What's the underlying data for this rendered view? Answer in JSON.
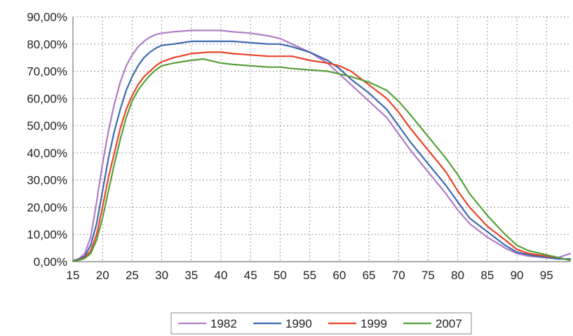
{
  "chart_data": {
    "type": "line",
    "title": "",
    "xlabel": "",
    "ylabel": "",
    "xlim": [
      15,
      99
    ],
    "ylim": [
      0,
      90
    ],
    "y_ticks": [
      "0,00%",
      "10,00%",
      "20,00%",
      "30,00%",
      "40,00%",
      "50,00%",
      "60,00%",
      "70,00%",
      "80,00%",
      "90,00%"
    ],
    "x_ticks": [
      "15",
      "20",
      "25",
      "30",
      "35",
      "40",
      "45",
      "50",
      "55",
      "60",
      "65",
      "70",
      "75",
      "80",
      "85",
      "90",
      "95"
    ],
    "grid": "dotted",
    "legend_position": "bottom",
    "series": [
      {
        "name": "1982",
        "color": "#b07cc6",
        "points": [
          [
            15,
            0.3
          ],
          [
            16,
            1
          ],
          [
            17,
            3
          ],
          [
            18,
            9
          ],
          [
            19,
            22
          ],
          [
            20,
            36
          ],
          [
            21,
            48
          ],
          [
            22,
            58
          ],
          [
            23,
            66
          ],
          [
            24,
            72
          ],
          [
            25,
            76
          ],
          [
            26,
            79
          ],
          [
            27,
            81
          ],
          [
            28,
            82.5
          ],
          [
            29,
            83.5
          ],
          [
            30,
            84
          ],
          [
            32,
            84.5
          ],
          [
            35,
            85
          ],
          [
            38,
            85
          ],
          [
            40,
            85
          ],
          [
            42,
            84.5
          ],
          [
            45,
            84
          ],
          [
            48,
            83
          ],
          [
            50,
            82
          ],
          [
            52,
            80
          ],
          [
            55,
            77
          ],
          [
            58,
            73
          ],
          [
            60,
            69
          ],
          [
            62,
            65
          ],
          [
            65,
            59
          ],
          [
            68,
            53
          ],
          [
            70,
            47
          ],
          [
            72,
            41
          ],
          [
            75,
            33
          ],
          [
            78,
            25
          ],
          [
            80,
            19
          ],
          [
            82,
            14
          ],
          [
            85,
            9
          ],
          [
            88,
            5
          ],
          [
            90,
            3
          ],
          [
            92,
            2
          ],
          [
            95,
            1.5
          ],
          [
            97,
            1.5
          ],
          [
            99,
            3
          ]
        ]
      },
      {
        "name": "1990",
        "color": "#3d6bb0",
        "points": [
          [
            15,
            0.3
          ],
          [
            16,
            1
          ],
          [
            17,
            2
          ],
          [
            18,
            6
          ],
          [
            19,
            14
          ],
          [
            20,
            26
          ],
          [
            21,
            38
          ],
          [
            22,
            48
          ],
          [
            23,
            56
          ],
          [
            24,
            63
          ],
          [
            25,
            68
          ],
          [
            26,
            72
          ],
          [
            27,
            75
          ],
          [
            28,
            77
          ],
          [
            29,
            78.5
          ],
          [
            30,
            79.5
          ],
          [
            32,
            80
          ],
          [
            35,
            81
          ],
          [
            38,
            81
          ],
          [
            40,
            81
          ],
          [
            42,
            81
          ],
          [
            45,
            80.5
          ],
          [
            48,
            80
          ],
          [
            50,
            80
          ],
          [
            52,
            79
          ],
          [
            55,
            77
          ],
          [
            58,
            74
          ],
          [
            60,
            71
          ],
          [
            62,
            67
          ],
          [
            65,
            62
          ],
          [
            68,
            56
          ],
          [
            70,
            50
          ],
          [
            72,
            44
          ],
          [
            75,
            36
          ],
          [
            78,
            28
          ],
          [
            80,
            22
          ],
          [
            82,
            16
          ],
          [
            85,
            11
          ],
          [
            88,
            6
          ],
          [
            90,
            3.5
          ],
          [
            92,
            2.5
          ],
          [
            95,
            1.5
          ],
          [
            97,
            1
          ],
          [
            99,
            1
          ]
        ]
      },
      {
        "name": "1999",
        "color": "#e8452a",
        "points": [
          [
            15,
            0.2
          ],
          [
            16,
            0.7
          ],
          [
            17,
            1.5
          ],
          [
            18,
            4
          ],
          [
            19,
            10
          ],
          [
            20,
            20
          ],
          [
            21,
            31
          ],
          [
            22,
            40
          ],
          [
            23,
            49
          ],
          [
            24,
            56
          ],
          [
            25,
            61
          ],
          [
            26,
            65
          ],
          [
            27,
            68
          ],
          [
            28,
            70
          ],
          [
            29,
            72
          ],
          [
            30,
            73.5
          ],
          [
            32,
            75
          ],
          [
            35,
            76.5
          ],
          [
            38,
            77
          ],
          [
            40,
            77
          ],
          [
            42,
            76.5
          ],
          [
            45,
            76
          ],
          [
            48,
            75.5
          ],
          [
            50,
            75.5
          ],
          [
            52,
            75.5
          ],
          [
            55,
            74
          ],
          [
            58,
            73
          ],
          [
            60,
            72
          ],
          [
            62,
            70
          ],
          [
            65,
            65
          ],
          [
            68,
            60
          ],
          [
            70,
            55
          ],
          [
            72,
            49
          ],
          [
            75,
            41
          ],
          [
            78,
            33
          ],
          [
            80,
            26
          ],
          [
            82,
            20
          ],
          [
            85,
            13
          ],
          [
            88,
            8
          ],
          [
            90,
            4.5
          ],
          [
            92,
            3
          ],
          [
            95,
            2
          ],
          [
            97,
            1.5
          ],
          [
            99,
            0.5
          ]
        ]
      },
      {
        "name": "2007",
        "color": "#55a03a",
        "points": [
          [
            15,
            0.2
          ],
          [
            16,
            0.5
          ],
          [
            17,
            1.2
          ],
          [
            18,
            3
          ],
          [
            19,
            8
          ],
          [
            20,
            16
          ],
          [
            21,
            26
          ],
          [
            22,
            36
          ],
          [
            23,
            45
          ],
          [
            24,
            53
          ],
          [
            25,
            59
          ],
          [
            26,
            63
          ],
          [
            27,
            66
          ],
          [
            28,
            68.5
          ],
          [
            29,
            70.5
          ],
          [
            30,
            72
          ],
          [
            32,
            73
          ],
          [
            35,
            74
          ],
          [
            37,
            74.5
          ],
          [
            40,
            73
          ],
          [
            42,
            72.5
          ],
          [
            45,
            72
          ],
          [
            48,
            71.5
          ],
          [
            50,
            71.5
          ],
          [
            52,
            71
          ],
          [
            55,
            70.5
          ],
          [
            58,
            70
          ],
          [
            60,
            69
          ],
          [
            62,
            68
          ],
          [
            65,
            66
          ],
          [
            68,
            63
          ],
          [
            70,
            59
          ],
          [
            72,
            54
          ],
          [
            75,
            46
          ],
          [
            78,
            38
          ],
          [
            80,
            32
          ],
          [
            82,
            25
          ],
          [
            85,
            17
          ],
          [
            88,
            10
          ],
          [
            90,
            6
          ],
          [
            92,
            4
          ],
          [
            95,
            2.5
          ],
          [
            97,
            1.5
          ],
          [
            99,
            0.5
          ]
        ]
      }
    ]
  }
}
